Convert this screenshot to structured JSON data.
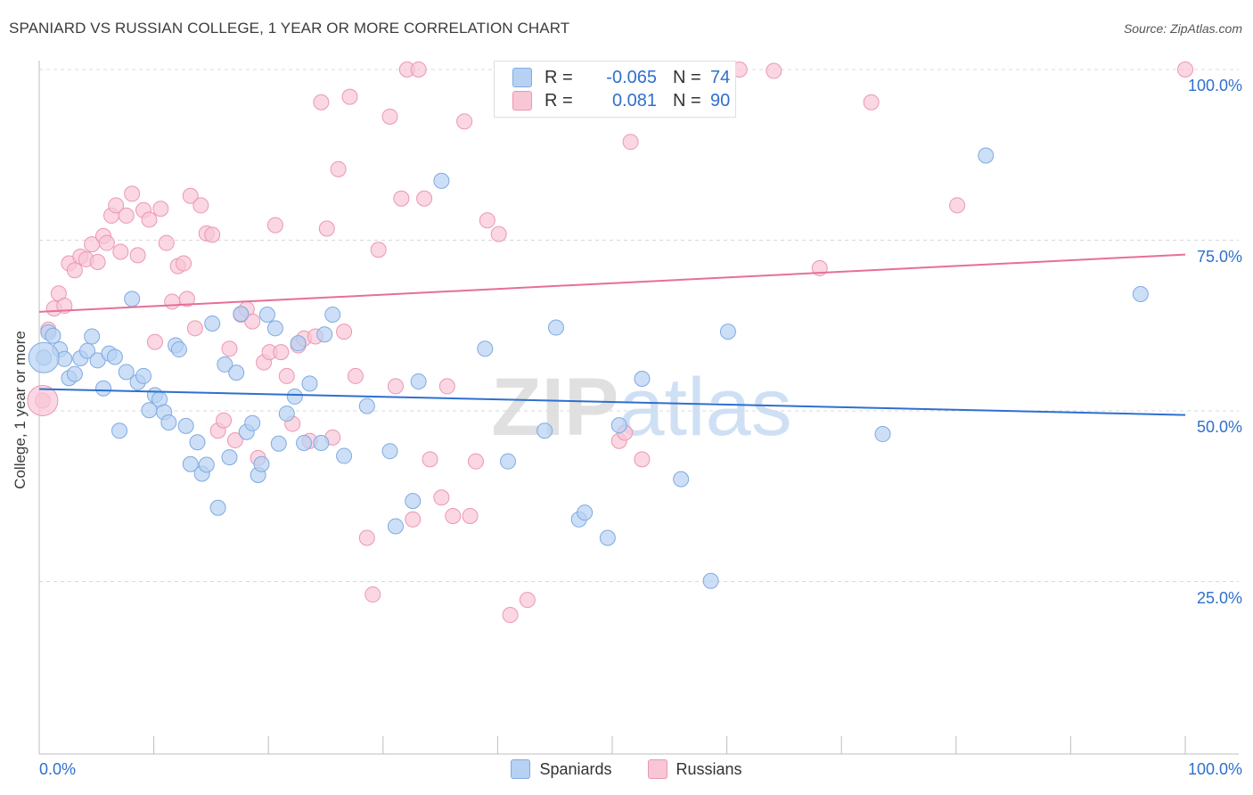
{
  "title": "SPANIARD VS RUSSIAN COLLEGE, 1 YEAR OR MORE CORRELATION CHART",
  "source": "Source: ZipAtlas.com",
  "watermark": "ZIPatlas",
  "colors": {
    "blue_fill": "#b7d1f2",
    "blue_stroke": "#7faae2",
    "blue_line": "#2f6fcf",
    "pink_fill": "#f8c6d5",
    "pink_stroke": "#ec97b2",
    "pink_line": "#e66f98",
    "tick_text": "#2f6fcf",
    "grid": "#d8d8d8"
  },
  "legend_top": [
    {
      "series": "Spaniards",
      "r_label": "R =",
      "r_value": "-0.065",
      "n_label": "N =",
      "n_value": "74"
    },
    {
      "series": "Russians",
      "r_label": "R =",
      "r_value": "0.081",
      "n_label": "N =",
      "n_value": "90"
    }
  ],
  "legend_bottom": [
    "Spaniards",
    "Russians"
  ],
  "chart_data": {
    "type": "scatter",
    "title": "SPANIARD VS RUSSIAN COLLEGE, 1 YEAR OR MORE CORRELATION CHART",
    "xlabel": "",
    "ylabel": "College, 1 year or more",
    "xlim": [
      0,
      100
    ],
    "ylim": [
      0,
      100
    ],
    "x_tick_labels": {
      "left": "0.0%",
      "right": "100.0%"
    },
    "y_ticks": [
      25,
      50,
      75,
      100
    ],
    "y_tick_labels": [
      "25.0%",
      "50.0%",
      "75.0%",
      "100.0%"
    ],
    "grid": "horizontal dashed",
    "legend_position": "top-center",
    "series": [
      {
        "name": "Spaniards",
        "color": "#b7d1f2",
        "trend": {
          "x": [
            0,
            100
          ],
          "y": [
            53.2,
            49.4
          ]
        },
        "points": [
          [
            0.4,
            57.8
          ],
          [
            0.8,
            61.5
          ],
          [
            1.2,
            61
          ],
          [
            1.8,
            59
          ],
          [
            2.2,
            57.6
          ],
          [
            2.6,
            54.8
          ],
          [
            3.1,
            55.4
          ],
          [
            3.6,
            57.7
          ],
          [
            4.2,
            58.8
          ],
          [
            4.6,
            60.9
          ],
          [
            5.1,
            57.4
          ],
          [
            5.6,
            53.3
          ],
          [
            6.1,
            58.4
          ],
          [
            6.6,
            57.9
          ],
          [
            7.0,
            47.1
          ],
          [
            7.6,
            55.7
          ],
          [
            8.1,
            66.4
          ],
          [
            8.6,
            54.2
          ],
          [
            9.1,
            55.1
          ],
          [
            9.6,
            50.1
          ],
          [
            10.1,
            52.3
          ],
          [
            10.5,
            51.7
          ],
          [
            10.9,
            49.8
          ],
          [
            11.3,
            48.3
          ],
          [
            11.9,
            59.6
          ],
          [
            12.2,
            59
          ],
          [
            12.8,
            47.8
          ],
          [
            13.2,
            42.2
          ],
          [
            13.8,
            45.4
          ],
          [
            14.2,
            40.8
          ],
          [
            14.6,
            42.1
          ],
          [
            15.1,
            62.8
          ],
          [
            15.6,
            35.8
          ],
          [
            16.2,
            56.8
          ],
          [
            16.6,
            43.2
          ],
          [
            17.2,
            55.6
          ],
          [
            17.6,
            64.2
          ],
          [
            18.1,
            46.9
          ],
          [
            18.6,
            48.2
          ],
          [
            19.1,
            40.6
          ],
          [
            19.4,
            42.2
          ],
          [
            19.9,
            64.1
          ],
          [
            20.6,
            62.1
          ],
          [
            20.9,
            45.2
          ],
          [
            21.6,
            49.6
          ],
          [
            22.3,
            52.1
          ],
          [
            22.6,
            59.9
          ],
          [
            23.1,
            45.3
          ],
          [
            23.6,
            54
          ],
          [
            24.6,
            45.3
          ],
          [
            24.9,
            61.2
          ],
          [
            25.6,
            64.1
          ],
          [
            26.6,
            43.4
          ],
          [
            28.6,
            50.7
          ],
          [
            30.6,
            44.1
          ],
          [
            31.1,
            33.1
          ],
          [
            32.6,
            36.8
          ],
          [
            33.1,
            54.3
          ],
          [
            35.1,
            83.7
          ],
          [
            38.9,
            59.1
          ],
          [
            40.9,
            42.6
          ],
          [
            44.1,
            47.1
          ],
          [
            45.1,
            62.2
          ],
          [
            47.1,
            34.1
          ],
          [
            47.6,
            35.1
          ],
          [
            49.6,
            31.4
          ],
          [
            50.6,
            47.9
          ],
          [
            52.6,
            54.7
          ],
          [
            56.0,
            40
          ],
          [
            58.6,
            25.1
          ],
          [
            60.1,
            61.6
          ],
          [
            73.6,
            46.6
          ],
          [
            82.6,
            87.4
          ],
          [
            96.1,
            67.1
          ]
        ]
      },
      {
        "name": "Russians",
        "color": "#f8c6d5",
        "trend": {
          "x": [
            0,
            100
          ],
          "y": [
            64.5,
            72.9
          ]
        },
        "points": [
          [
            0.3,
            51.5
          ],
          [
            0.8,
            61.9
          ],
          [
            1.3,
            65
          ],
          [
            1.7,
            67.2
          ],
          [
            2.2,
            65.4
          ],
          [
            2.6,
            71.6
          ],
          [
            3.1,
            70.6
          ],
          [
            3.6,
            72.6
          ],
          [
            4.1,
            72.2
          ],
          [
            4.6,
            74.4
          ],
          [
            5.1,
            71.8
          ],
          [
            5.6,
            75.6
          ],
          [
            5.9,
            74.6
          ],
          [
            6.3,
            78.6
          ],
          [
            6.7,
            80.1
          ],
          [
            7.1,
            73.3
          ],
          [
            7.6,
            78.6
          ],
          [
            8.1,
            81.8
          ],
          [
            8.6,
            72.8
          ],
          [
            9.1,
            79.4
          ],
          [
            9.6,
            78
          ],
          [
            10.1,
            60.1
          ],
          [
            10.6,
            79.6
          ],
          [
            11.1,
            74.6
          ],
          [
            11.6,
            66
          ],
          [
            12.1,
            71.2
          ],
          [
            12.6,
            71.6
          ],
          [
            12.9,
            66.4
          ],
          [
            13.2,
            81.5
          ],
          [
            13.6,
            62.1
          ],
          [
            14.1,
            80.1
          ],
          [
            14.6,
            76
          ],
          [
            15.1,
            75.8
          ],
          [
            15.6,
            47.1
          ],
          [
            16.1,
            48.6
          ],
          [
            16.6,
            59.1
          ],
          [
            17.1,
            45.7
          ],
          [
            17.6,
            64.1
          ],
          [
            18.1,
            64.9
          ],
          [
            18.6,
            63.1
          ],
          [
            19.1,
            43.1
          ],
          [
            19.6,
            57.1
          ],
          [
            20.1,
            58.6
          ],
          [
            20.6,
            77.2
          ],
          [
            21.1,
            58.6
          ],
          [
            21.6,
            55.1
          ],
          [
            22.1,
            48.1
          ],
          [
            22.6,
            59.6
          ],
          [
            23.1,
            60.6
          ],
          [
            23.6,
            45.6
          ],
          [
            24.1,
            60.9
          ],
          [
            24.6,
            95.2
          ],
          [
            25.1,
            76.7
          ],
          [
            25.6,
            46.1
          ],
          [
            26.1,
            85.4
          ],
          [
            26.6,
            61.6
          ],
          [
            27.1,
            96
          ],
          [
            27.6,
            55.1
          ],
          [
            28.6,
            31.4
          ],
          [
            29.1,
            23.1
          ],
          [
            29.6,
            73.6
          ],
          [
            30.6,
            93.1
          ],
          [
            31.1,
            53.6
          ],
          [
            31.6,
            81.1
          ],
          [
            32.1,
            100
          ],
          [
            32.6,
            34.1
          ],
          [
            33.1,
            100
          ],
          [
            33.6,
            81.1
          ],
          [
            34.1,
            42.9
          ],
          [
            35.1,
            37.3
          ],
          [
            35.6,
            53.6
          ],
          [
            36.1,
            34.6
          ],
          [
            37.1,
            92.4
          ],
          [
            37.6,
            34.6
          ],
          [
            38.1,
            42.6
          ],
          [
            39.1,
            77.9
          ],
          [
            40.1,
            75.9
          ],
          [
            41.1,
            20.1
          ],
          [
            42.6,
            22.3
          ],
          [
            47.6,
            100
          ],
          [
            50.6,
            45.6
          ],
          [
            51.1,
            46.8
          ],
          [
            51.6,
            89.4
          ],
          [
            52.6,
            42.9
          ],
          [
            61.1,
            100
          ],
          [
            64.1,
            99.8
          ],
          [
            68.1,
            70.9
          ],
          [
            72.6,
            95.2
          ],
          [
            80.1,
            80.1
          ],
          [
            100,
            100
          ]
        ]
      }
    ]
  }
}
